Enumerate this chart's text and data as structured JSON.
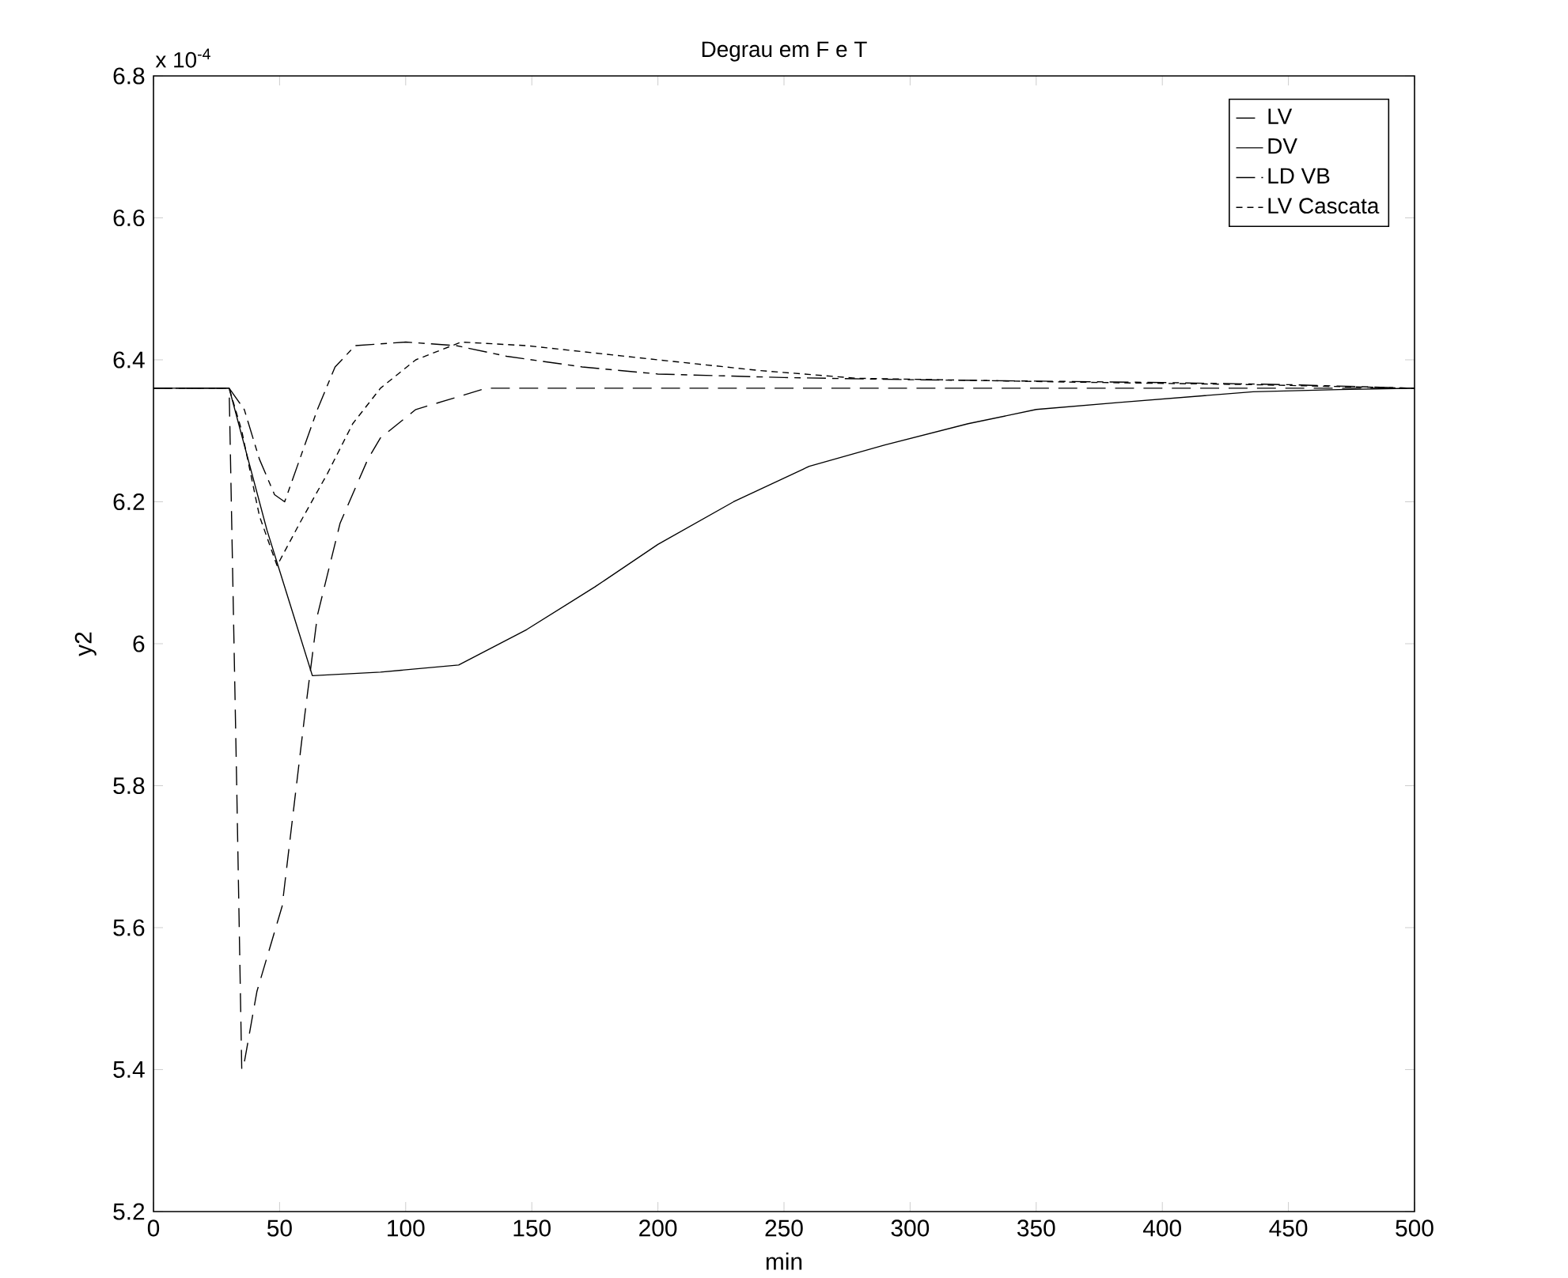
{
  "chart_data": {
    "type": "line",
    "title": "Degrau em F e T",
    "xlabel": "min",
    "ylabel": "y2",
    "annotations": [
      "x 10$^{-4}$"
    ],
    "xlim": [
      0,
      500
    ],
    "ylim": [
      5.2,
      6.8
    ],
    "xticks": [
      0,
      50,
      100,
      150,
      200,
      250,
      300,
      350,
      400,
      450,
      500
    ],
    "yticks": [
      5.2,
      5.4,
      5.6,
      5.8,
      6,
      6.2,
      6.4,
      6.6,
      6.8
    ],
    "grid": false,
    "legend": "top right",
    "marker": "none",
    "series": [
      {
        "name": "LV",
        "color": "#000000",
        "line_style": "dashed",
        "x": [
          0,
          30,
          33,
          35,
          36,
          41,
          51,
          56,
          60,
          65,
          74,
          85,
          90,
          104,
          132,
          200,
          300,
          400,
          500
        ],
        "values": [
          6.36,
          6.36,
          5.8,
          5.4,
          5.41,
          5.51,
          5.63,
          5.78,
          5.9,
          6.04,
          6.17,
          6.26,
          6.29,
          6.33,
          6.36,
          6.36,
          6.36,
          6.36,
          6.36
        ]
      },
      {
        "name": "DV",
        "color": "#000000",
        "line_style": "solid",
        "x": [
          0,
          30,
          45,
          63,
          90,
          121,
          148,
          175,
          200,
          230,
          260,
          290,
          323,
          350,
          383,
          436,
          470,
          500
        ],
        "values": [
          6.36,
          6.36,
          6.16,
          5.955,
          5.96,
          5.97,
          6.02,
          6.08,
          6.14,
          6.2,
          6.25,
          6.28,
          6.31,
          6.33,
          6.34,
          6.355,
          6.358,
          6.36
        ]
      },
      {
        "name": "LD VB",
        "color": "#000000",
        "line_style": "dashdot",
        "x": [
          0,
          30,
          36,
          42,
          48,
          52,
          58,
          65,
          72,
          80,
          100,
          120,
          140,
          170,
          200,
          250,
          300,
          350,
          400,
          450,
          500
        ],
        "values": [
          6.36,
          6.36,
          6.33,
          6.26,
          6.21,
          6.2,
          6.26,
          6.33,
          6.39,
          6.42,
          6.425,
          6.42,
          6.405,
          6.39,
          6.38,
          6.375,
          6.372,
          6.37,
          6.368,
          6.365,
          6.36
        ]
      },
      {
        "name": "LV Cascata",
        "color": "#000000",
        "line_style": "dotted",
        "x": [
          0,
          30,
          35,
          42,
          49,
          58,
          69,
          79,
          90,
          104,
          122,
          148,
          174,
          200,
          240,
          279,
          357,
          436,
          500
        ],
        "values": [
          6.36,
          6.36,
          6.3,
          6.18,
          6.11,
          6.17,
          6.24,
          6.31,
          6.36,
          6.4,
          6.425,
          6.42,
          6.41,
          6.4,
          6.385,
          6.374,
          6.369,
          6.365,
          6.36
        ]
      }
    ]
  }
}
